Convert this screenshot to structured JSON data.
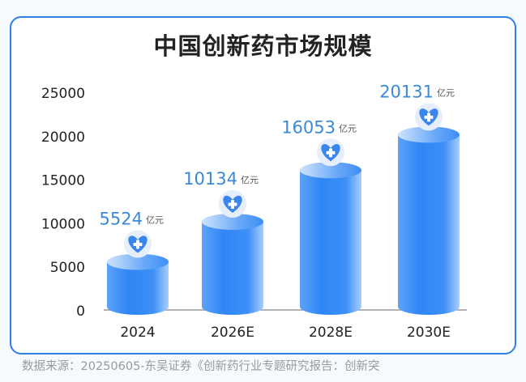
{
  "chart_data": {
    "type": "bar",
    "title": "中国创新药市场规模",
    "categories": [
      "2024",
      "2026E",
      "2028E",
      "2030E"
    ],
    "values": [
      5524,
      10134,
      16053,
      20131
    ],
    "unit": "亿元",
    "data_labels": [
      "5524",
      "10134",
      "16053",
      "20131"
    ],
    "yticks": [
      "0",
      "5000",
      "10000",
      "15000",
      "20000",
      "25000"
    ],
    "ylim": [
      0,
      25000
    ],
    "grid": false,
    "legend": "none",
    "bar_style": "3d-cylinder",
    "bar_icon": "heart-plus-icon",
    "colors": {
      "bar": "#3a8df5",
      "label": "#3a8ad8",
      "border": "#2f7fe8"
    }
  },
  "source": "数据来源：20250605-东吴证券《创新药行业专题研究报告：创新突"
}
